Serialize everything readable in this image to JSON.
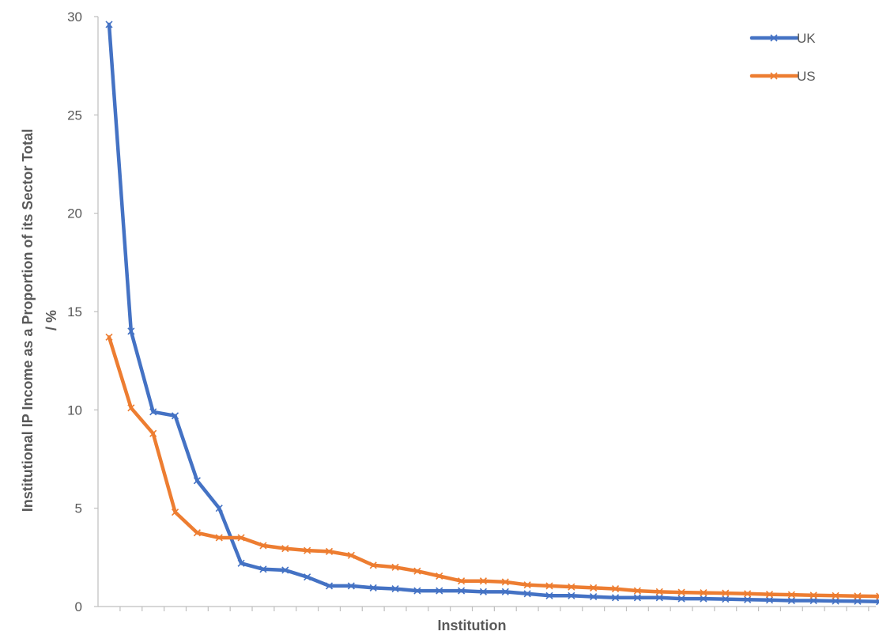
{
  "chart_data": {
    "type": "line",
    "title": "",
    "xlabel": "Institution",
    "ylabel": "Institutional IP Income as a Proportion of its Sector Total / %",
    "ylabel_lines": [
      "Institutional IP Income as a Proportion of its Sector Total",
      "/ %"
    ],
    "ylim": [
      0,
      30
    ],
    "yticks": [
      0,
      5,
      10,
      15,
      20,
      25,
      30
    ],
    "x": [
      1,
      2,
      3,
      4,
      5,
      6,
      7,
      8,
      9,
      10,
      11,
      12,
      13,
      14,
      15,
      16,
      17,
      18,
      19,
      20,
      21,
      22,
      23,
      24,
      25,
      26,
      27,
      28,
      29,
      30,
      31,
      32,
      33,
      34,
      35,
      36
    ],
    "legend_position": "top-right",
    "grid": false,
    "series": [
      {
        "name": "UK",
        "color": "#4472c4",
        "values": [
          29.6,
          14.0,
          9.9,
          9.7,
          6.4,
          5.0,
          2.2,
          1.9,
          1.85,
          1.5,
          1.05,
          1.05,
          0.95,
          0.9,
          0.8,
          0.8,
          0.8,
          0.75,
          0.75,
          0.65,
          0.55,
          0.55,
          0.5,
          0.45,
          0.45,
          0.45,
          0.4,
          0.4,
          0.38,
          0.35,
          0.33,
          0.3,
          0.3,
          0.28,
          0.27,
          0.25
        ]
      },
      {
        "name": "US",
        "color": "#ed7d31",
        "values": [
          13.7,
          10.1,
          8.8,
          4.8,
          3.75,
          3.5,
          3.5,
          3.1,
          2.95,
          2.85,
          2.8,
          2.6,
          2.1,
          2.0,
          1.8,
          1.55,
          1.3,
          1.3,
          1.25,
          1.1,
          1.05,
          1.0,
          0.95,
          0.9,
          0.8,
          0.75,
          0.72,
          0.7,
          0.68,
          0.65,
          0.62,
          0.6,
          0.57,
          0.55,
          0.53,
          0.52
        ]
      }
    ]
  }
}
